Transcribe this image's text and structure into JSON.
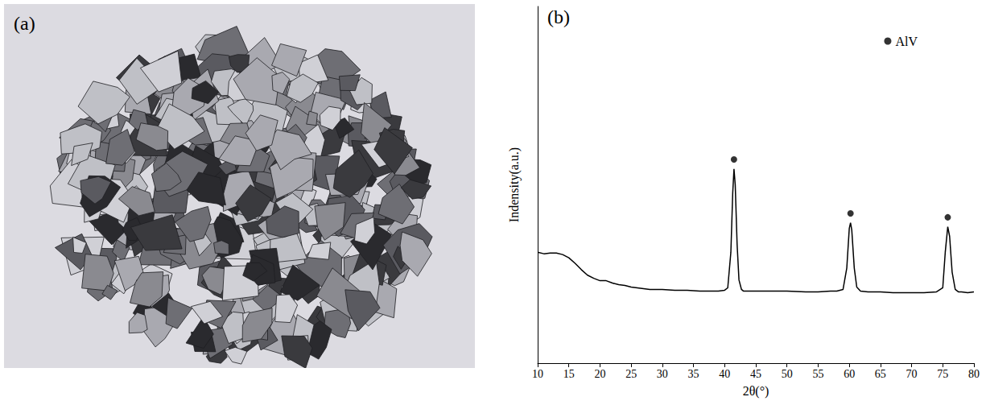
{
  "panel_a": {
    "panel_label": "(a)"
  },
  "chart_data": {
    "type": "line",
    "panel_label": "(b)",
    "xlabel": "2θ(°)",
    "ylabel": "Indensity(a.u.)",
    "x": [
      10,
      11,
      12,
      13,
      14,
      15,
      16,
      17,
      18,
      19,
      20,
      21,
      22,
      23,
      24,
      25,
      26,
      27,
      28,
      29,
      30,
      32,
      34,
      36,
      38,
      39,
      40,
      40.5,
      41,
      41.3,
      41.5,
      41.7,
      42,
      42.3,
      42.7,
      43,
      45,
      47,
      50,
      53,
      55,
      57,
      58,
      59,
      59.6,
      60,
      60.2,
      60.4,
      60.8,
      61.2,
      61.8,
      63,
      65,
      67,
      70,
      72,
      74,
      75,
      75.4,
      75.8,
      76.1,
      76.5,
      77,
      77.5,
      78,
      79,
      80
    ],
    "series": [
      {
        "color": "#000000",
        "line_style": "solid",
        "values": [
          140,
          138,
          139,
          139,
          137,
          133,
          126,
          118,
          111,
          107,
          104,
          104,
          101,
          99,
          98,
          96,
          95,
          94,
          93,
          93,
          93,
          92,
          92,
          91,
          91,
          91,
          92,
          95,
          140,
          215,
          245,
          225,
          150,
          105,
          93,
          91,
          91,
          91,
          91,
          90,
          90,
          91,
          91,
          93,
          120,
          170,
          177,
          168,
          120,
          96,
          91,
          90,
          90,
          89,
          89,
          89,
          90,
          95,
          140,
          172,
          160,
          115,
          93,
          90,
          90,
          89,
          90
        ]
      },
      {
        "name": "AlV",
        "type": "scatter",
        "marker": "circle",
        "color": "#000000",
        "x": [
          41.5,
          60.2,
          75.8
        ],
        "values": [
          257,
          189,
          184
        ]
      }
    ],
    "xlim": [
      10,
      80
    ],
    "xticks": [
      10,
      15,
      20,
      25,
      30,
      35,
      40,
      45,
      50,
      55,
      60,
      65,
      70,
      75,
      80
    ],
    "ylim": [
      0,
      450
    ],
    "tick_labels": "x",
    "legend": "upper right",
    "grid": false
  }
}
